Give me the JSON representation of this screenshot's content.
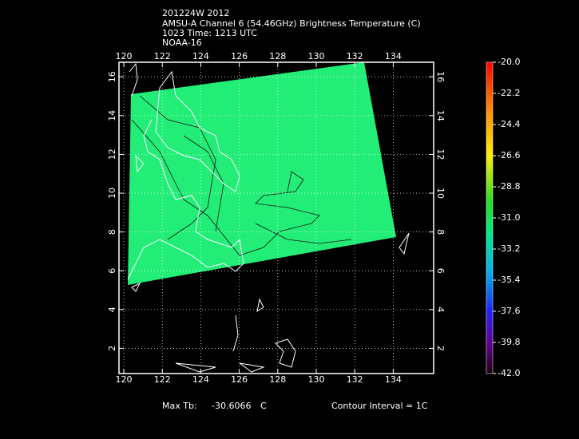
{
  "header": {
    "lines": [
      "201224W 2012",
      "AMSU-A Channel 6 (54.46GHz) Brightness Temperature (C)",
      "1023 Time: 1213 UTC",
      "NOAA-16"
    ]
  },
  "map": {
    "lonlim": [
      119.75,
      136.1
    ],
    "latlim": [
      0.7,
      16.75
    ],
    "lonticks": [
      120,
      122,
      124,
      126,
      128,
      130,
      132,
      134
    ],
    "latticks": [
      2,
      4,
      6,
      8,
      10,
      12,
      14,
      16
    ],
    "grid": true
  },
  "colorbar": {
    "range": [
      -42,
      -20
    ],
    "ticks": [
      {
        "value": -20,
        "label": "-20.0"
      },
      {
        "value": -22.2,
        "label": "-22.2"
      },
      {
        "value": -24.4,
        "label": "-24.4"
      },
      {
        "value": -26.6,
        "label": "-26.6"
      },
      {
        "value": -28.8,
        "label": "-28.8"
      },
      {
        "value": -31,
        "label": "-31.0"
      },
      {
        "value": -33.2,
        "label": "-33.2"
      },
      {
        "value": -35.4,
        "label": "-35.4"
      },
      {
        "value": -37.6,
        "label": "-37.6"
      },
      {
        "value": -39.8,
        "label": "-39.8"
      },
      {
        "value": -42,
        "label": "-42.0"
      }
    ]
  },
  "footer": {
    "max_label": "Max Tb:",
    "max_value": -30.6066,
    "max_unit": "C",
    "contour": "Contour Interval = 1C"
  }
}
